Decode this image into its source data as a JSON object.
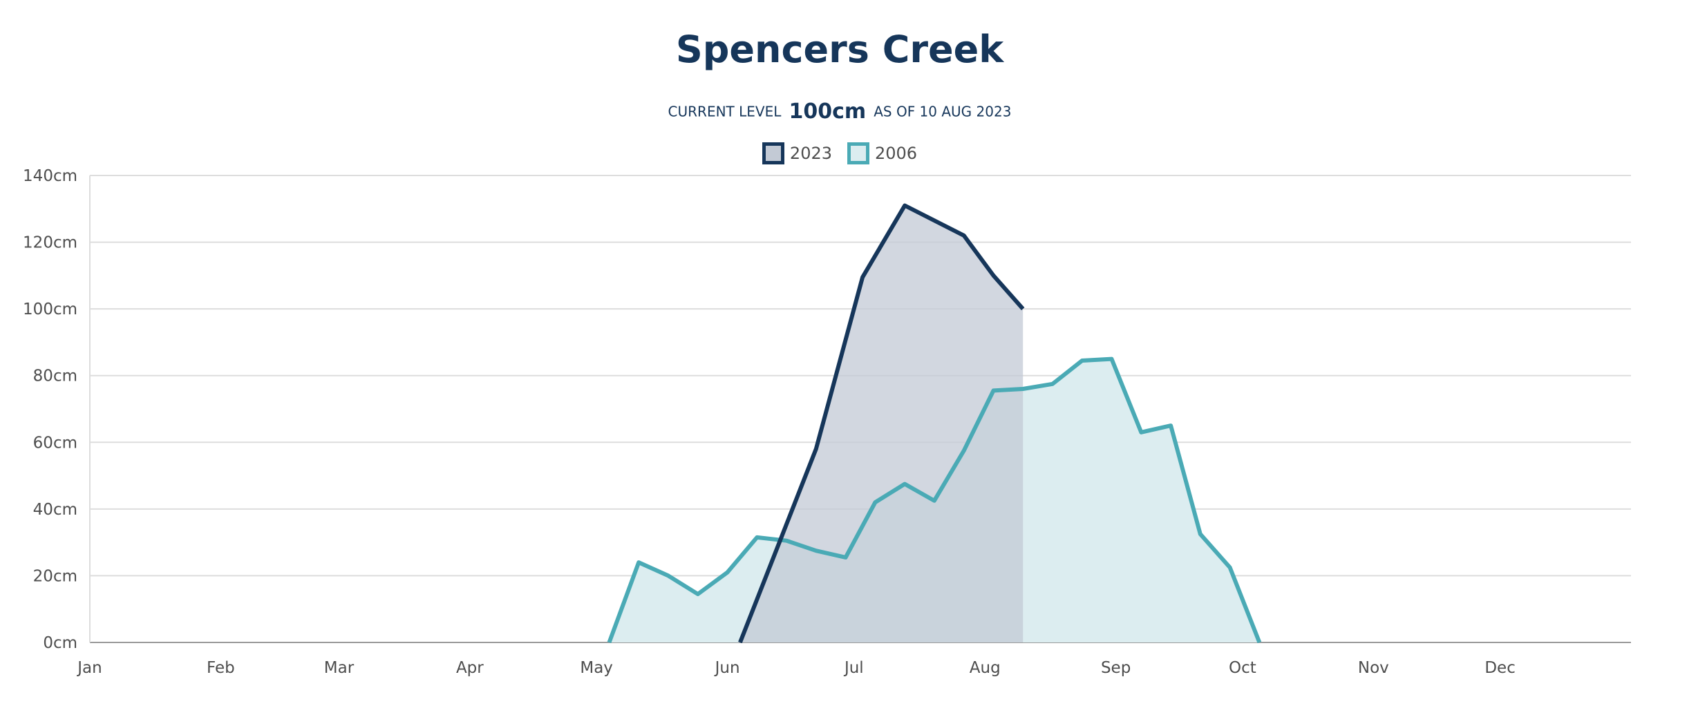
{
  "header": {
    "title": "Spencers Creek",
    "current_prefix": "CURRENT LEVEL",
    "current_value": "100cm",
    "current_suffix": "AS OF 10 AUG 2023"
  },
  "legend": [
    {
      "label": "2023",
      "color": "#16365a"
    },
    {
      "label": "2006",
      "color": "#4aaab5"
    }
  ],
  "chart_data": {
    "type": "area",
    "title": "Spencers Creek",
    "xlabel": "",
    "ylabel": "",
    "x_ticks": [
      "Jan",
      "Feb",
      "Mar",
      "Apr",
      "May",
      "Jun",
      "Jul",
      "Aug",
      "Sep",
      "Oct",
      "Nov",
      "Dec"
    ],
    "x_range": [
      "01-01",
      "12-31"
    ],
    "y_ticks": [
      "0cm",
      "20cm",
      "40cm",
      "60cm",
      "80cm",
      "100cm",
      "120cm",
      "140cm"
    ],
    "ylim": [
      0,
      140
    ],
    "y_unit": "cm",
    "grid": true,
    "legend_position": "top-center",
    "series": [
      {
        "name": "2006",
        "color": "#4aaab5",
        "fill": "#dcedf0",
        "points": [
          {
            "date": "05-04",
            "value": 0
          },
          {
            "date": "05-11",
            "value": 24
          },
          {
            "date": "05-18",
            "value": 20
          },
          {
            "date": "05-25",
            "value": 14.5
          },
          {
            "date": "06-01",
            "value": 21
          },
          {
            "date": "06-08",
            "value": 31.5
          },
          {
            "date": "06-15",
            "value": 30.5
          },
          {
            "date": "06-22",
            "value": 27.5
          },
          {
            "date": "06-29",
            "value": 25.5
          },
          {
            "date": "07-06",
            "value": 42
          },
          {
            "date": "07-13",
            "value": 47.5
          },
          {
            "date": "07-20",
            "value": 42.5
          },
          {
            "date": "07-27",
            "value": 57.5
          },
          {
            "date": "08-03",
            "value": 75.5
          },
          {
            "date": "08-10",
            "value": 76
          },
          {
            "date": "08-17",
            "value": 77.5
          },
          {
            "date": "08-24",
            "value": 84.5
          },
          {
            "date": "08-31",
            "value": 85
          },
          {
            "date": "09-07",
            "value": 63
          },
          {
            "date": "09-14",
            "value": 65
          },
          {
            "date": "09-21",
            "value": 32.5
          },
          {
            "date": "09-28",
            "value": 22.5
          },
          {
            "date": "10-05",
            "value": 0
          }
        ]
      },
      {
        "name": "2023",
        "color": "#16365a",
        "fill": "#c3cad5",
        "points": [
          {
            "date": "06-04",
            "value": 0
          },
          {
            "date": "06-22",
            "value": 58
          },
          {
            "date": "07-03",
            "value": 109.5
          },
          {
            "date": "07-13",
            "value": 131
          },
          {
            "date": "07-27",
            "value": 122
          },
          {
            "date": "08-03",
            "value": 110
          },
          {
            "date": "08-10",
            "value": 100
          }
        ]
      }
    ]
  }
}
